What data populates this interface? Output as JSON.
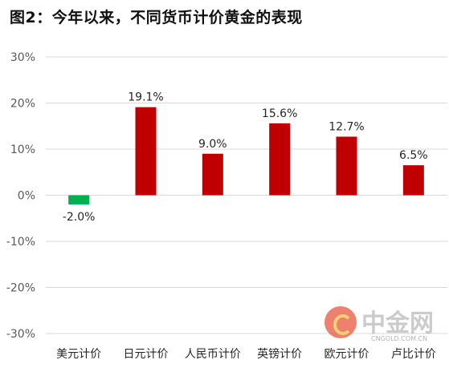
{
  "title": "图2：今年以来，不同货币计价黄金的表现",
  "watermark": {
    "name": "中金网",
    "url": "CNGOLD.COM.CN"
  },
  "colors": {
    "positive": "#c00000",
    "negative": "#00b050",
    "grid": "#d9d9d9"
  },
  "chart_data": {
    "type": "bar",
    "categories": [
      "美元计价",
      "日元计价",
      "人民币计价",
      "英镑计价",
      "欧元计价",
      "卢比计价"
    ],
    "values": [
      -2.0,
      19.1,
      9.0,
      15.6,
      12.7,
      6.5
    ],
    "data_labels": [
      "-2.0%",
      "19.1%",
      "9.0%",
      "15.6%",
      "12.7%",
      "6.5%"
    ],
    "yticks": [
      30,
      20,
      10,
      0,
      -10,
      -20,
      -30
    ],
    "ytick_labels": [
      "30%",
      "20%",
      "10%",
      "0%",
      "-10%",
      "-20%",
      "-30%"
    ],
    "ylim": [
      -30,
      30
    ],
    "grid": true,
    "legend": "none"
  }
}
